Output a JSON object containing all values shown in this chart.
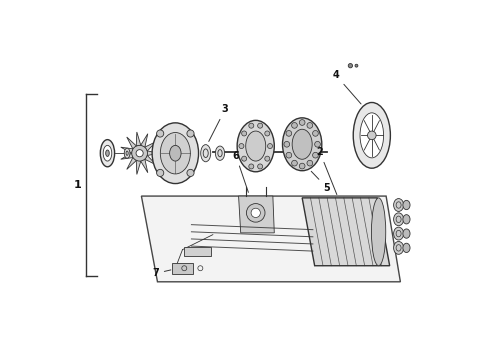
{
  "bg_color": "#ffffff",
  "line_color": "#333333",
  "label_color": "#111111",
  "fig_width": 4.9,
  "fig_height": 3.6,
  "dpi": 100
}
